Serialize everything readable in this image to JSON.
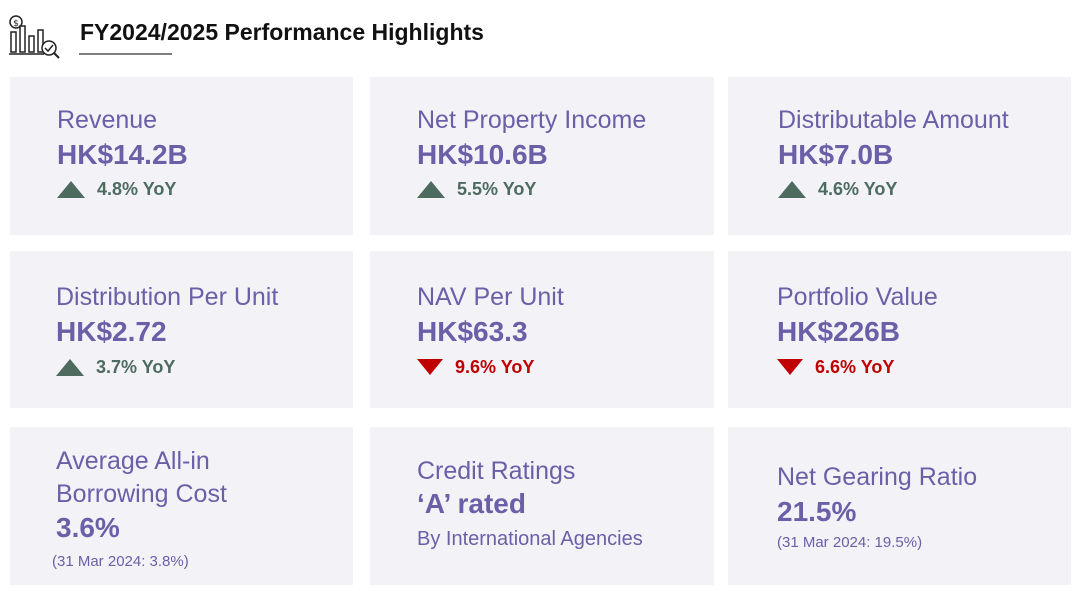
{
  "header": {
    "title": "FY2024/2025 Performance Highlights",
    "icon": "chart-magnifier-icon"
  },
  "cards": {
    "revenue": {
      "label": "Revenue",
      "value": "HK$14.2B",
      "yoy": "4.8% YoY",
      "direction": "up"
    },
    "net_property_income": {
      "label": "Net Property Income",
      "value": "HK$10.6B",
      "yoy": "5.5% YoY",
      "direction": "up"
    },
    "distributable_amount": {
      "label": "Distributable Amount",
      "value": "HK$7.0B",
      "yoy": "4.6% YoY",
      "direction": "up"
    },
    "distribution_per_unit": {
      "label": "Distribution Per Unit",
      "value": "HK$2.72",
      "yoy": "3.7% YoY",
      "direction": "up"
    },
    "nav_per_unit": {
      "label": "NAV Per Unit",
      "value": "HK$63.3",
      "yoy": "9.6% YoY",
      "direction": "down"
    },
    "portfolio_value": {
      "label": "Portfolio Value",
      "value": "HK$226B",
      "yoy": "6.6% YoY",
      "direction": "down"
    },
    "borrowing_cost": {
      "label_line1": "Average All-in",
      "label_line2": "Borrowing Cost",
      "value": "3.6%",
      "note": "(31 Mar 2024: 3.8%)"
    },
    "credit_ratings": {
      "label": "Credit Ratings",
      "value": "‘A’ rated",
      "sub": "By International Agencies"
    },
    "net_gearing": {
      "label": "Net Gearing Ratio",
      "value": "21.5%",
      "note": "(31 Mar 2024: 19.5%)"
    }
  },
  "colors": {
    "accent": "#6b5fa8",
    "up": "#4d6b5f",
    "down": "#c00000",
    "card_bg": "#f2f2f7"
  }
}
